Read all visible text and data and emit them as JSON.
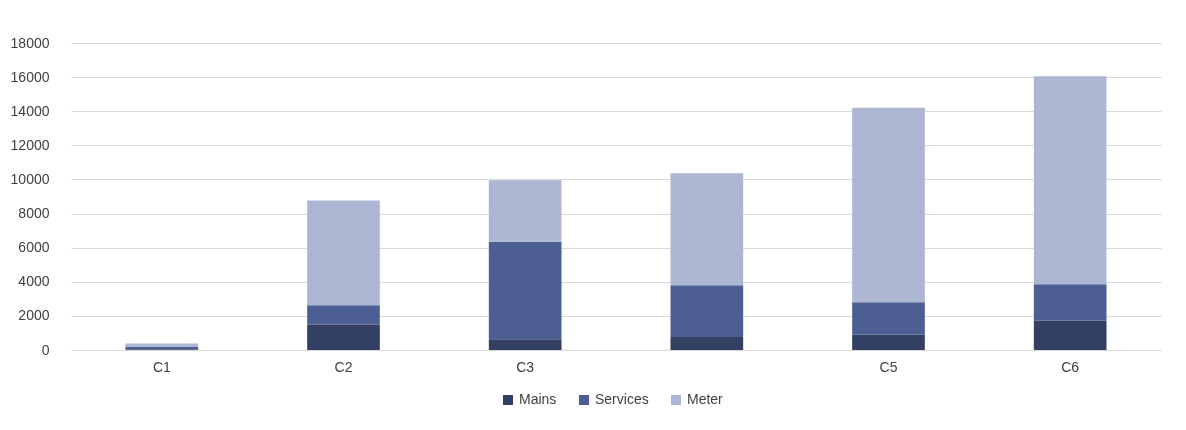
{
  "chart_data": {
    "type": "bar",
    "stacked": true,
    "categories": [
      "C1",
      "C2",
      "C3",
      null,
      "C5",
      "C6"
    ],
    "series": [
      {
        "name": "Mains",
        "color": "#333f63",
        "values": [
          50,
          1480,
          630,
          760,
          900,
          1710
        ]
      },
      {
        "name": "Services",
        "color": "#4d5e93",
        "values": [
          130,
          1150,
          5720,
          3030,
          1900,
          2150
        ]
      },
      {
        "name": "Meter",
        "color": "#adb7d4",
        "values": [
          200,
          6140,
          3610,
          6580,
          11410,
          12190
        ]
      }
    ],
    "ylim": [
      0,
      18000
    ],
    "yticks": [
      0,
      2000,
      4000,
      6000,
      8000,
      10000,
      12000,
      14000,
      16000,
      18000
    ],
    "grid": "y",
    "legend": "bottom"
  }
}
